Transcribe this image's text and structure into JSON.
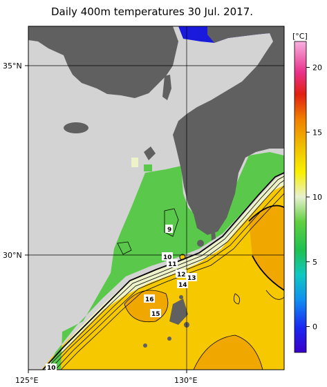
{
  "title": "Daily 400m temperatures 30 Jul. 2017.",
  "axes": {
    "y_ticks": [
      {
        "label": "35°N",
        "lat": 35
      },
      {
        "label": "30°N",
        "lat": 30
      }
    ],
    "x_ticks": [
      {
        "label": "125°E",
        "lon": 125
      },
      {
        "label": "130°E",
        "lon": 130
      }
    ]
  },
  "colorbar": {
    "unit": "[°C]",
    "ticks": [
      {
        "label": "20",
        "value": 20
      },
      {
        "label": "15",
        "value": 15
      },
      {
        "label": "10",
        "value": 10
      },
      {
        "label": "5",
        "value": 5
      },
      {
        "label": "0",
        "value": 0
      }
    ],
    "range": [
      -2,
      22
    ]
  },
  "contour_labels": [
    {
      "text": "9"
    },
    {
      "text": "10"
    },
    {
      "text": "11"
    },
    {
      "text": "12"
    },
    {
      "text": "13"
    },
    {
      "text": "14"
    },
    {
      "text": "15"
    },
    {
      "text": "16"
    },
    {
      "text": "10"
    }
  ],
  "colors": {
    "land": "#606060",
    "no_data": "#d3d3d3",
    "cold": "#4caf3c",
    "warm": "#f5c800",
    "hot": "#f0a800",
    "coldest": "#1a1adc"
  }
}
